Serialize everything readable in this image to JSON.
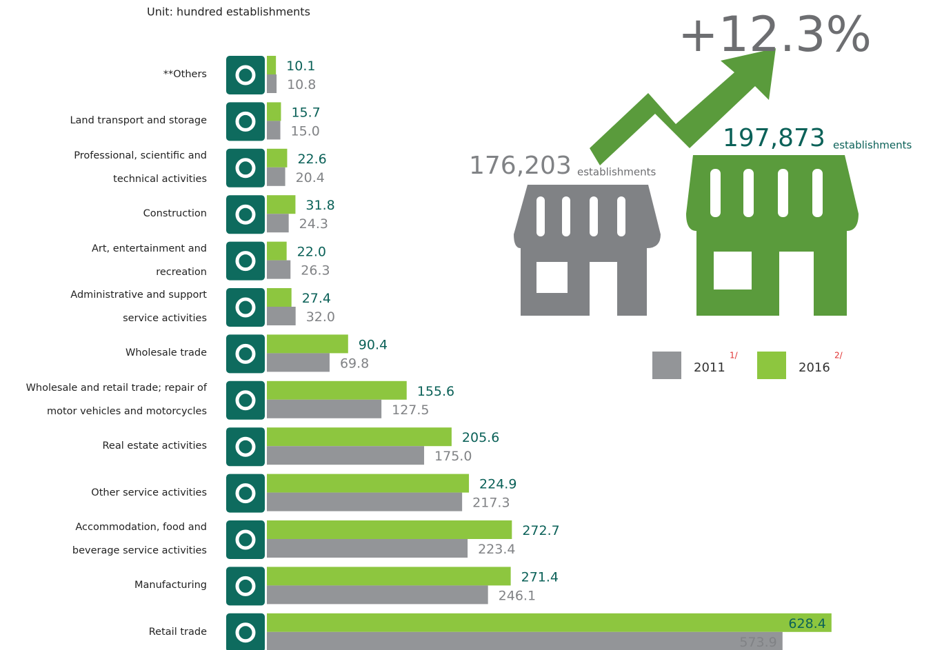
{
  "unit_note": "Unit: hundred establishments",
  "chart_data": {
    "type": "bar",
    "orientation": "horizontal",
    "categories": [
      "**Others",
      "Land transport and storage",
      "Professional, scientific and\ntechnical activities",
      "Construction",
      "Art, entertainment and\nrecreation",
      "Administrative and support\nservice activities",
      "Wholesale trade",
      "Wholesale and retail trade; repair of\nmotor vehicles and motorcycles",
      "Real estate activities",
      "Other service activities",
      "Accommodation, food and\nbeverage service activities",
      "Manufacturing",
      "Retail trade"
    ],
    "series": [
      {
        "name": "2011",
        "note": "1/",
        "color": "#939598",
        "label_color": "#808285",
        "values": [
          10.8,
          15.0,
          20.4,
          24.3,
          26.3,
          32.0,
          69.8,
          127.5,
          175.0,
          217.3,
          223.4,
          246.1,
          573.9
        ],
        "value_labels": [
          "10.8",
          "15.0",
          "20.4",
          "24.3",
          "26.3",
          "32.0",
          "69.8",
          "127.5",
          "175.0",
          "217.3",
          "223.4",
          "246.1",
          "573.9"
        ]
      },
      {
        "name": "2016",
        "note": "2/",
        "color": "#8dc63f",
        "label_color": "#0b6158",
        "values": [
          10.1,
          15.7,
          22.6,
          31.8,
          22.0,
          27.4,
          90.4,
          155.6,
          205.6,
          224.9,
          272.7,
          271.4,
          628.4
        ],
        "value_labels": [
          "10.1",
          "15.7",
          "22.6",
          "31.8",
          "22.0",
          "27.4",
          "90.4",
          "155.6",
          "205.6",
          "224.9",
          "272.7",
          "271.4",
          "628.4"
        ]
      }
    ]
  },
  "summary": {
    "change": "+12.3%",
    "total_2011": "176,203",
    "total_2016": "197,873",
    "unit": "establishments"
  }
}
